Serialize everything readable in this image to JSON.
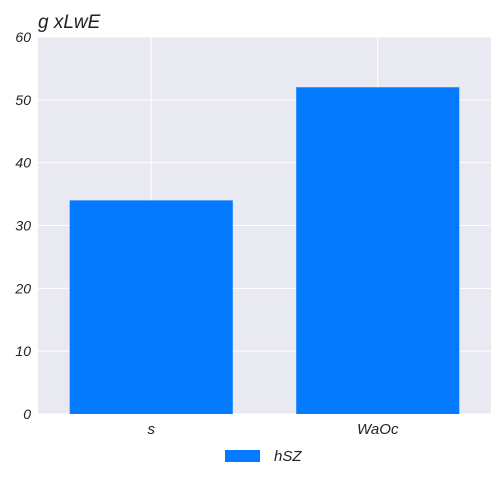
{
  "colors": {
    "bar": "#047bff",
    "plot_bg": "#e9e9f1",
    "grid": "#ffffff"
  },
  "chart_data": {
    "type": "bar",
    "title": "g xLwE",
    "categories": [
      "s",
      "WaOc"
    ],
    "series": [
      {
        "name": "hSZ",
        "values": [
          34,
          52
        ]
      }
    ],
    "ylim": [
      0,
      60
    ],
    "yticks": [
      0,
      10,
      20,
      30,
      40,
      50,
      60
    ],
    "grid": true,
    "legend_position": "bottom-center"
  }
}
